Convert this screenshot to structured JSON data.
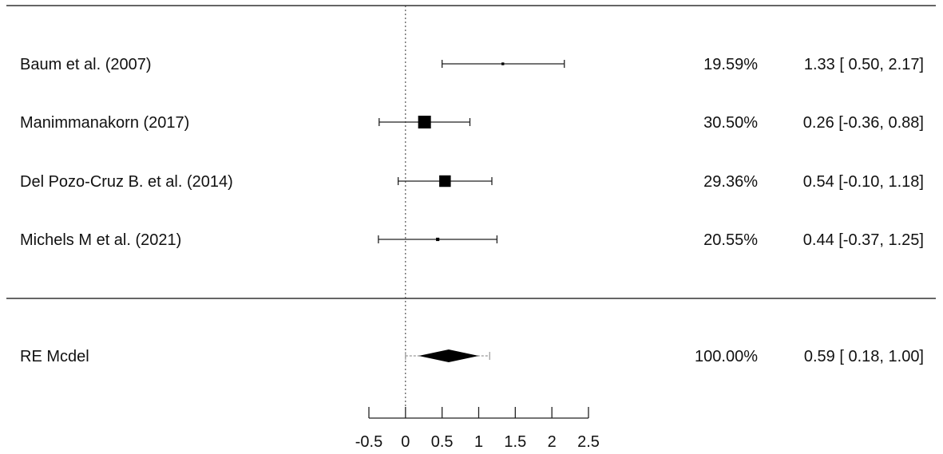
{
  "chart_data": {
    "type": "forest",
    "xlim": [
      -0.5,
      2.5
    ],
    "x_ticks": [
      "-0.5",
      "0",
      "0.5",
      "1",
      "1.5",
      "2",
      "2.5"
    ],
    "reference_line": 0,
    "studies": [
      {
        "label": "Baum et al. (2007)",
        "estimate": 1.33,
        "ci_low": 0.5,
        "ci_high": 2.17,
        "weight": "19.59%",
        "effect_text": "1.33 [ 0.50, 2.17]"
      },
      {
        "label": "Manimmanakorn (2017)",
        "estimate": 0.26,
        "ci_low": -0.36,
        "ci_high": 0.88,
        "weight": "30.50%",
        "effect_text": "0.26 [-0.36, 0.88]"
      },
      {
        "label": "Del Pozo-Cruz B. et al. (2014)",
        "estimate": 0.54,
        "ci_low": -0.1,
        "ci_high": 1.18,
        "weight": "29.36%",
        "effect_text": "0.54 [-0.10, 1.18]"
      },
      {
        "label": "Michels M et al. (2021)",
        "estimate": 0.44,
        "ci_low": -0.37,
        "ci_high": 1.25,
        "weight": "20.55%",
        "effect_text": "0.44 [-0.37, 1.25]"
      }
    ],
    "summary": {
      "label": "RE Mcdel",
      "estimate": 0.59,
      "ci_low": 0.18,
      "ci_high": 1.0,
      "pi_low": 0.0,
      "pi_high": 1.15,
      "weight": "100.00%",
      "effect_text": "0.59 [ 0.18, 1.00]"
    }
  }
}
